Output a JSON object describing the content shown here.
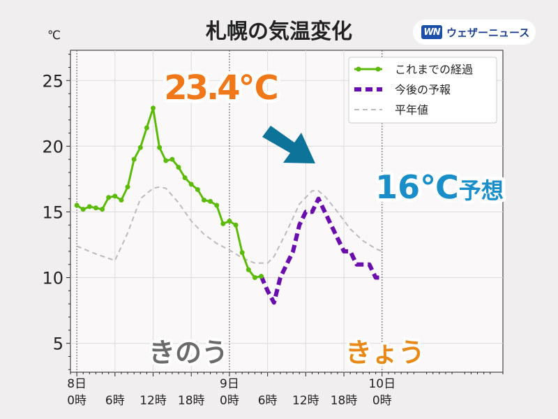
{
  "title": "札幌の気温変化",
  "unit_label": "℃",
  "logo": {
    "mark": "WN",
    "text": "ウェザーニュース"
  },
  "annotations": {
    "peak_yesterday": "23.4℃",
    "forecast_value": "16℃",
    "forecast_suffix": "予想",
    "label_yesterday": "きのう",
    "label_today": "きょう",
    "arrow_icon": "down-right-arrow-icon"
  },
  "colors": {
    "observed": "#5cba0a",
    "forecast": "#6a0dad",
    "normal": "#bbbbbb",
    "peak_text": "#f07818",
    "forecast_text": "#1a8ec9",
    "yesterday_text": "#6a6a6a",
    "today_text": "#e88a1a",
    "arrow": "#0d7399"
  },
  "chart_data": {
    "type": "line",
    "title": "札幌の気温変化",
    "ylabel": "℃",
    "xlim": [
      -1,
      67
    ],
    "ylim": [
      2.8,
      27.3
    ],
    "y_ticks": [
      5,
      10,
      15,
      20,
      25
    ],
    "grid": true,
    "legend_position": "top-right",
    "x_tick_labels": [
      {
        "x": 0,
        "label": "8日\n0時"
      },
      {
        "x": 6,
        "label": "6時"
      },
      {
        "x": 12,
        "label": "12時"
      },
      {
        "x": 18,
        "label": "18時"
      },
      {
        "x": 24,
        "label": "9日\n0時"
      },
      {
        "x": 30,
        "label": "6時"
      },
      {
        "x": 36,
        "label": "12時"
      },
      {
        "x": 42,
        "label": "18時"
      },
      {
        "x": 48,
        "label": "10日\n0時"
      }
    ],
    "series": [
      {
        "name": "これまでの経過",
        "style": "solid-markers",
        "x": [
          0,
          1,
          2,
          3,
          4,
          5,
          6,
          7,
          8,
          9,
          10,
          11,
          12,
          13,
          14,
          15,
          16,
          17,
          18,
          19,
          20,
          21,
          22,
          23,
          24,
          25,
          26,
          27,
          28,
          29
        ],
        "y": [
          15.5,
          15.2,
          15.4,
          15.3,
          15.2,
          16.1,
          16.2,
          15.9,
          16.9,
          19.0,
          19.9,
          21.4,
          22.9,
          19.9,
          18.9,
          19.0,
          18.4,
          17.6,
          17.1,
          16.7,
          15.9,
          15.8,
          15.5,
          14.1,
          14.3,
          14.0,
          11.9,
          10.6,
          10.0,
          10.1
        ]
      },
      {
        "name": "今後の予報",
        "style": "dashed",
        "x": [
          29,
          30,
          31,
          32,
          33,
          34,
          35,
          36,
          37,
          38,
          39,
          40,
          41,
          42,
          43,
          44,
          45,
          46,
          47,
          48
        ],
        "y": [
          10.1,
          9.0,
          8.1,
          10.0,
          11.0,
          12.0,
          14.0,
          15.0,
          15.0,
          16.0,
          15.0,
          14.0,
          13.0,
          12.0,
          12.0,
          11.0,
          11.0,
          11.0,
          10.0,
          10.0
        ]
      },
      {
        "name": "平年値",
        "style": "dashed-light",
        "x": [
          0,
          3,
          6,
          8,
          10,
          12,
          13,
          14,
          16,
          18,
          20,
          22,
          24,
          26,
          28,
          30,
          31,
          33,
          35,
          37,
          38,
          39,
          41,
          43,
          45,
          47,
          48
        ],
        "y": [
          12.4,
          11.8,
          11.3,
          13.4,
          16.0,
          16.8,
          16.9,
          16.8,
          15.7,
          14.3,
          13.3,
          12.6,
          12.1,
          11.5,
          11.1,
          11.1,
          11.6,
          13.5,
          15.6,
          16.6,
          16.6,
          16.2,
          15.0,
          13.7,
          12.8,
          12.2,
          12.0
        ]
      }
    ]
  }
}
